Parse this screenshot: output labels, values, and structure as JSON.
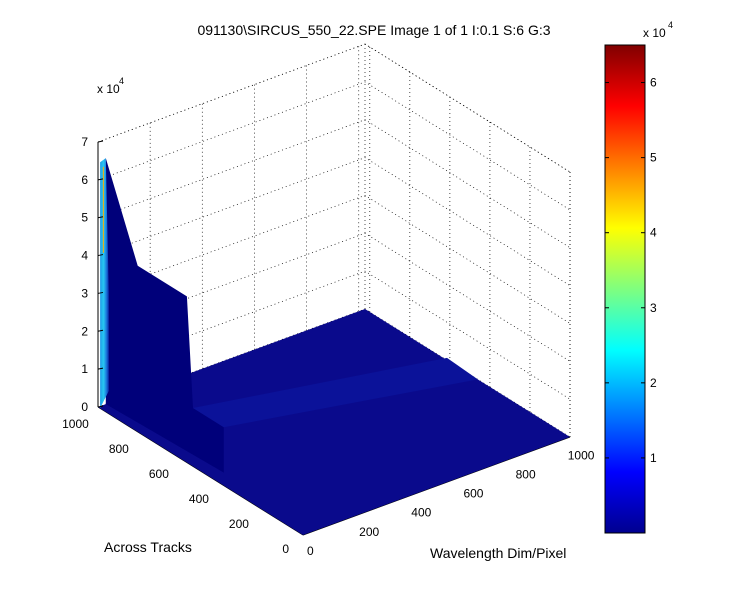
{
  "chart_data": {
    "type": "surface",
    "title": "091130\\SIRCUS_550_22.SPE  Image 1 of 1  I:0.1  S:6  G:3",
    "xlabel": "Wavelength Dim/Pixel",
    "ylabel": "Across Tracks",
    "zlabel": "",
    "xlim": [
      0,
      1024
    ],
    "ylim": [
      0,
      1024
    ],
    "zlim": [
      0,
      70000
    ],
    "x_ticks": [
      "0",
      "200",
      "400",
      "600",
      "800",
      "1000"
    ],
    "y_ticks": [
      "0",
      "200",
      "400",
      "600",
      "800",
      "1000"
    ],
    "z_ticks": [
      "0",
      "1",
      "2",
      "3",
      "4",
      "5",
      "6",
      "7"
    ],
    "z_exponent_base": "x 10",
    "z_exponent_power": "4",
    "grid": true,
    "colormap": "jet",
    "colorbar": {
      "ticks": [
        "1",
        "2",
        "3",
        "4",
        "5",
        "6"
      ],
      "exponent_base": "x 10",
      "exponent_power": "4",
      "range": [
        0,
        65000
      ]
    },
    "surface": {
      "background_level": 0,
      "ridge_across_track": [
        0,
        1024
      ],
      "ridge_wavelength_pixel": 0,
      "ridge_peak": 65000,
      "ridge_flat_level": 41000,
      "shelf_level": 12000,
      "notes_visible": "flat floor with a vertical spectral ridge"
    }
  },
  "colors": {
    "surface_fill": "#0a0a8c",
    "surface_dark": "#00007a",
    "ridge_cyan": "#22c4f0",
    "grid": "#000000"
  }
}
